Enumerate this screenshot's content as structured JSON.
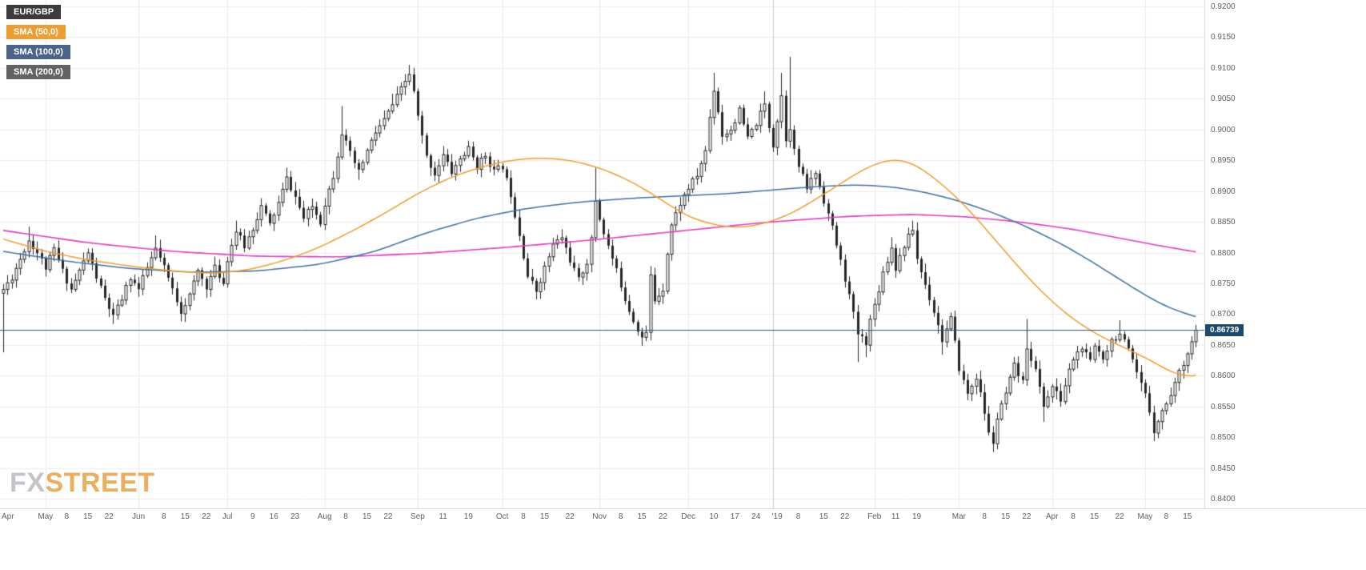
{
  "legend": {
    "symbol": "EUR/GBP",
    "sma50": "SMA (50,0)",
    "sma100": "SMA (100,0)",
    "sma200": "SMA (200,0)"
  },
  "watermark": {
    "fx": "FX",
    "street": "STREET"
  },
  "current_price": {
    "value": 0.86739,
    "label": "0.86739"
  },
  "colors": {
    "sma50": "#ef9d2e",
    "sma100": "#3d6fa5",
    "sma200": "#e23bbf",
    "candle": "#262626",
    "candle_up_fill": "#ffffff",
    "price_line": "#33566f",
    "price_badge_bg": "#1c4a6e",
    "grid": "#ededed",
    "grid_month": "#ececec",
    "grid_year": "#c9c9c9",
    "axis_text": "#5f5f5f",
    "plot_border": "#d8d8d8"
  },
  "chart_data": {
    "type": "candlestick",
    "symbol": "EUR/GBP",
    "timeframe_hint": "daily, mid-Apr 2018 to mid-May 2019",
    "overlays": [
      "SMA (50,0)",
      "SMA (100,0)",
      "SMA (200,0)"
    ],
    "current_price": 0.86739,
    "y_axis": {
      "min": 0.84,
      "max": 0.92,
      "step": 0.005,
      "ticks": [
        "0.9200",
        "0.9150",
        "0.9100",
        "0.9050",
        "0.9000",
        "0.8950",
        "0.8900",
        "0.8850",
        "0.8800",
        "0.8750",
        "0.8700",
        "0.8650",
        "0.8600",
        "0.8550",
        "0.8500",
        "0.8450",
        "0.8400"
      ]
    },
    "x_axis": {
      "ticks": [
        [
          "Apr",
          0
        ],
        [
          "May",
          10
        ],
        [
          "8",
          15
        ],
        [
          "15",
          20
        ],
        [
          "22",
          25
        ],
        [
          "Jun",
          32
        ],
        [
          "8",
          38
        ],
        [
          "15",
          43
        ],
        [
          "22",
          48
        ],
        [
          "Jul",
          53
        ],
        [
          "9",
          59
        ],
        [
          "16",
          64
        ],
        [
          "23",
          69
        ],
        [
          "Aug",
          76
        ],
        [
          "8",
          81
        ],
        [
          "15",
          86
        ],
        [
          "22",
          91
        ],
        [
          "Sep",
          98
        ],
        [
          "11",
          104
        ],
        [
          "19",
          110
        ],
        [
          "Oct",
          118
        ],
        [
          "8",
          123
        ],
        [
          "15",
          128
        ],
        [
          "22",
          134
        ],
        [
          "Nov",
          141
        ],
        [
          "8",
          146
        ],
        [
          "15",
          151
        ],
        [
          "22",
          156
        ],
        [
          "Dec",
          162
        ],
        [
          "10",
          168
        ],
        [
          "17",
          173
        ],
        [
          "24",
          178
        ],
        [
          "'19",
          183
        ],
        [
          "8",
          188
        ],
        [
          "15",
          194
        ],
        [
          "22",
          199
        ],
        [
          "Feb",
          206
        ],
        [
          "11",
          211
        ],
        [
          "19",
          216
        ],
        [
          "Mar",
          226
        ],
        [
          "8",
          232
        ],
        [
          "15",
          237
        ],
        [
          "22",
          242
        ],
        [
          "Apr",
          248
        ],
        [
          "8",
          253
        ],
        [
          "15",
          258
        ],
        [
          "22",
          264
        ],
        [
          "May",
          270
        ],
        [
          "8",
          275
        ],
        [
          "15",
          280
        ]
      ],
      "month_grid_idx": [
        10,
        32,
        53,
        76,
        98,
        118,
        141,
        162,
        206,
        226,
        248,
        270
      ],
      "year_grid_idx": 182
    },
    "candles": {
      "count": 283,
      "seed": 11,
      "close_anchors": [
        [
          0,
          0.874
        ],
        [
          2,
          0.876
        ],
        [
          4,
          0.879
        ],
        [
          6,
          0.882
        ],
        [
          8,
          0.88
        ],
        [
          10,
          0.8775
        ],
        [
          12,
          0.8805
        ],
        [
          14,
          0.877
        ],
        [
          16,
          0.874
        ],
        [
          18,
          0.877
        ],
        [
          20,
          0.88
        ],
        [
          22,
          0.876
        ],
        [
          24,
          0.8725
        ],
        [
          26,
          0.8695
        ],
        [
          28,
          0.8725
        ],
        [
          30,
          0.876
        ],
        [
          32,
          0.874
        ],
        [
          34,
          0.8775
        ],
        [
          36,
          0.8805
        ],
        [
          38,
          0.8775
        ],
        [
          40,
          0.874
        ],
        [
          42,
          0.8705
        ],
        [
          44,
          0.873
        ],
        [
          46,
          0.877
        ],
        [
          48,
          0.8745
        ],
        [
          50,
          0.8775
        ],
        [
          52,
          0.875
        ],
        [
          53,
          0.879
        ],
        [
          55,
          0.8835
        ],
        [
          57,
          0.881
        ],
        [
          59,
          0.884
        ],
        [
          61,
          0.8875
        ],
        [
          63,
          0.8845
        ],
        [
          65,
          0.888
        ],
        [
          67,
          0.892
        ],
        [
          69,
          0.889
        ],
        [
          71,
          0.8855
        ],
        [
          73,
          0.8875
        ],
        [
          75,
          0.885
        ],
        [
          76,
          0.888
        ],
        [
          78,
          0.8925
        ],
        [
          80,
          0.8995
        ],
        [
          82,
          0.896
        ],
        [
          84,
          0.893
        ],
        [
          86,
          0.8965
        ],
        [
          88,
          0.8995
        ],
        [
          90,
          0.9015
        ],
        [
          92,
          0.904
        ],
        [
          94,
          0.9065
        ],
        [
          96,
          0.909
        ],
        [
          97,
          0.906
        ],
        [
          98,
          0.902
        ],
        [
          100,
          0.8955
        ],
        [
          102,
          0.8928
        ],
        [
          104,
          0.8958
        ],
        [
          106,
          0.893
        ],
        [
          108,
          0.8952
        ],
        [
          110,
          0.8968
        ],
        [
          112,
          0.894
        ],
        [
          114,
          0.8958
        ],
        [
          116,
          0.8932
        ],
        [
          118,
          0.894
        ],
        [
          120,
          0.8895
        ],
        [
          122,
          0.883
        ],
        [
          124,
          0.8762
        ],
        [
          126,
          0.8738
        ],
        [
          128,
          0.8775
        ],
        [
          130,
          0.8812
        ],
        [
          132,
          0.8825
        ],
        [
          134,
          0.8788
        ],
        [
          136,
          0.8755
        ],
        [
          138,
          0.8785
        ],
        [
          139,
          0.882
        ],
        [
          140,
          0.8885
        ],
        [
          141,
          0.8855
        ],
        [
          143,
          0.881
        ],
        [
          145,
          0.877
        ],
        [
          147,
          0.8725
        ],
        [
          149,
          0.869
        ],
        [
          151,
          0.8662
        ],
        [
          152,
          0.8668
        ],
        [
          153,
          0.8762
        ],
        [
          154,
          0.8722
        ],
        [
          156,
          0.8742
        ],
        [
          157,
          0.88
        ],
        [
          158,
          0.8845
        ],
        [
          160,
          0.888
        ],
        [
          162,
          0.8905
        ],
        [
          164,
          0.8925
        ],
        [
          166,
          0.8965
        ],
        [
          167,
          0.902
        ],
        [
          168,
          0.9065
        ],
        [
          169,
          0.903
        ],
        [
          170,
          0.899
        ],
        [
          172,
          0.9
        ],
        [
          174,
          0.903
        ],
        [
          176,
          0.8985
        ],
        [
          178,
          0.901
        ],
        [
          180,
          0.904
        ],
        [
          181,
          0.9005
        ],
        [
          182,
          0.8975
        ],
        [
          183,
          0.9015
        ],
        [
          184,
          0.9055
        ],
        [
          185,
          0.8985
        ],
        [
          186,
          0.9005
        ],
        [
          187,
          0.8965
        ],
        [
          188,
          0.894
        ],
        [
          190,
          0.8905
        ],
        [
          192,
          0.893
        ],
        [
          194,
          0.8885
        ],
        [
          196,
          0.884
        ],
        [
          198,
          0.8785
        ],
        [
          200,
          0.873
        ],
        [
          202,
          0.8668
        ],
        [
          204,
          0.8655
        ],
        [
          205,
          0.869
        ],
        [
          206,
          0.8715
        ],
        [
          208,
          0.8768
        ],
        [
          210,
          0.8808
        ],
        [
          211,
          0.8775
        ],
        [
          213,
          0.8812
        ],
        [
          215,
          0.8838
        ],
        [
          216,
          0.879
        ],
        [
          218,
          0.8748
        ],
        [
          220,
          0.8705
        ],
        [
          222,
          0.8658
        ],
        [
          224,
          0.8692
        ],
        [
          226,
          0.8612
        ],
        [
          228,
          0.857
        ],
        [
          230,
          0.8598
        ],
        [
          232,
          0.854
        ],
        [
          233,
          0.8505
        ],
        [
          234,
          0.8492
        ],
        [
          235,
          0.853
        ],
        [
          237,
          0.857
        ],
        [
          239,
          0.8615
        ],
        [
          241,
          0.8588
        ],
        [
          242,
          0.8648
        ],
        [
          244,
          0.8608
        ],
        [
          246,
          0.8552
        ],
        [
          248,
          0.8582
        ],
        [
          250,
          0.856
        ],
        [
          252,
          0.8608
        ],
        [
          253,
          0.8628
        ],
        [
          255,
          0.8645
        ],
        [
          257,
          0.8622
        ],
        [
          258,
          0.8648
        ],
        [
          260,
          0.863
        ],
        [
          262,
          0.8658
        ],
        [
          264,
          0.8668
        ],
        [
          266,
          0.864
        ],
        [
          268,
          0.8602
        ],
        [
          270,
          0.8568
        ],
        [
          271,
          0.8542
        ],
        [
          272,
          0.8512
        ],
        [
          273,
          0.8528
        ],
        [
          275,
          0.8555
        ],
        [
          277,
          0.8588
        ],
        [
          279,
          0.8622
        ],
        [
          281,
          0.8655
        ],
        [
          282,
          0.86739
        ]
      ],
      "spikes": [
        [
          0,
          "low",
          0.8638
        ],
        [
          6,
          "high",
          0.8842
        ],
        [
          26,
          "low",
          0.8684
        ],
        [
          36,
          "high",
          0.8828
        ],
        [
          42,
          "low",
          0.8688
        ],
        [
          55,
          "high",
          0.8852
        ],
        [
          67,
          "high",
          0.8938
        ],
        [
          80,
          "high",
          0.9038
        ],
        [
          84,
          "low",
          0.8918
        ],
        [
          92,
          "high",
          0.9058
        ],
        [
          96,
          "high",
          0.9105
        ],
        [
          102,
          "low",
          0.8916
        ],
        [
          110,
          "high",
          0.8982
        ],
        [
          126,
          "low",
          0.8724
        ],
        [
          132,
          "high",
          0.8838
        ],
        [
          140,
          "high",
          0.8938
        ],
        [
          151,
          "low",
          0.865
        ],
        [
          153,
          "high",
          0.8778
        ],
        [
          168,
          "high",
          0.9092
        ],
        [
          180,
          "high",
          0.9062
        ],
        [
          184,
          "high",
          0.9092
        ],
        [
          186,
          "high",
          0.9118
        ],
        [
          202,
          "low",
          0.8622
        ],
        [
          204,
          "low",
          0.863
        ],
        [
          210,
          "high",
          0.8825
        ],
        [
          215,
          "high",
          0.8852
        ],
        [
          222,
          "low",
          0.8634
        ],
        [
          234,
          "low",
          0.8476
        ],
        [
          242,
          "high",
          0.8692
        ],
        [
          246,
          "low",
          0.8525
        ],
        [
          264,
          "high",
          0.869
        ],
        [
          272,
          "low",
          0.8494
        ],
        [
          282,
          "high",
          0.8682
        ]
      ]
    },
    "sma50_anchors": [
      [
        0,
        0.8822
      ],
      [
        10,
        0.8802
      ],
      [
        20,
        0.8788
      ],
      [
        30,
        0.8778
      ],
      [
        40,
        0.877
      ],
      [
        50,
        0.8766
      ],
      [
        58,
        0.8772
      ],
      [
        66,
        0.8786
      ],
      [
        74,
        0.8806
      ],
      [
        82,
        0.8833
      ],
      [
        90,
        0.8863
      ],
      [
        98,
        0.8896
      ],
      [
        106,
        0.8923
      ],
      [
        114,
        0.8941
      ],
      [
        120,
        0.895
      ],
      [
        126,
        0.8954
      ],
      [
        132,
        0.8952
      ],
      [
        138,
        0.8944
      ],
      [
        144,
        0.893
      ],
      [
        150,
        0.891
      ],
      [
        156,
        0.8884
      ],
      [
        162,
        0.8858
      ],
      [
        168,
        0.8845
      ],
      [
        174,
        0.884
      ],
      [
        180,
        0.8847
      ],
      [
        186,
        0.8862
      ],
      [
        192,
        0.8886
      ],
      [
        198,
        0.8912
      ],
      [
        203,
        0.8934
      ],
      [
        208,
        0.8949
      ],
      [
        212,
        0.8952
      ],
      [
        216,
        0.8942
      ],
      [
        220,
        0.8922
      ],
      [
        225,
        0.8893
      ],
      [
        230,
        0.8857
      ],
      [
        235,
        0.8817
      ],
      [
        240,
        0.8777
      ],
      [
        245,
        0.874
      ],
      [
        250,
        0.8708
      ],
      [
        255,
        0.8682
      ],
      [
        260,
        0.8662
      ],
      [
        264,
        0.8649
      ],
      [
        268,
        0.8636
      ],
      [
        271,
        0.8626
      ],
      [
        274,
        0.8614
      ],
      [
        277,
        0.8603
      ],
      [
        280,
        0.8598
      ],
      [
        282,
        0.8601
      ]
    ],
    "sma100_anchors": [
      [
        0,
        0.8802
      ],
      [
        15,
        0.8786
      ],
      [
        30,
        0.8774
      ],
      [
        45,
        0.8768
      ],
      [
        60,
        0.877
      ],
      [
        75,
        0.8781
      ],
      [
        88,
        0.8802
      ],
      [
        100,
        0.8832
      ],
      [
        112,
        0.8856
      ],
      [
        124,
        0.8872
      ],
      [
        136,
        0.8882
      ],
      [
        148,
        0.8888
      ],
      [
        160,
        0.8892
      ],
      [
        172,
        0.8896
      ],
      [
        184,
        0.8903
      ],
      [
        194,
        0.8908
      ],
      [
        202,
        0.891
      ],
      [
        210,
        0.8907
      ],
      [
        218,
        0.8898
      ],
      [
        226,
        0.8884
      ],
      [
        234,
        0.8865
      ],
      [
        242,
        0.8842
      ],
      [
        250,
        0.8815
      ],
      [
        257,
        0.8787
      ],
      [
        263,
        0.8761
      ],
      [
        269,
        0.8735
      ],
      [
        275,
        0.8712
      ],
      [
        280,
        0.87
      ],
      [
        282,
        0.8696
      ]
    ],
    "sma200_anchors": [
      [
        0,
        0.8836
      ],
      [
        20,
        0.8816
      ],
      [
        40,
        0.8802
      ],
      [
        60,
        0.8794
      ],
      [
        80,
        0.8793
      ],
      [
        100,
        0.8799
      ],
      [
        120,
        0.8809
      ],
      [
        140,
        0.8821
      ],
      [
        160,
        0.8835
      ],
      [
        180,
        0.8849
      ],
      [
        200,
        0.8859
      ],
      [
        215,
        0.8862
      ],
      [
        228,
        0.8858
      ],
      [
        240,
        0.885
      ],
      [
        252,
        0.8839
      ],
      [
        262,
        0.8826
      ],
      [
        272,
        0.8813
      ],
      [
        282,
        0.8801
      ]
    ]
  }
}
